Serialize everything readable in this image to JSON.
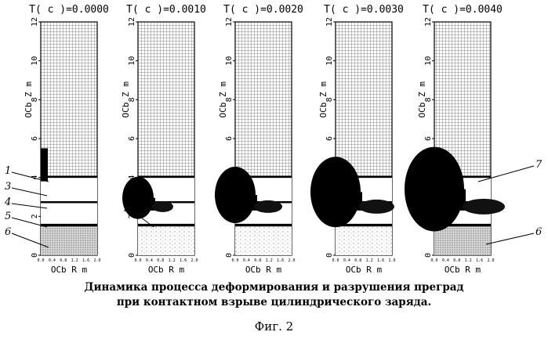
{
  "panels": [
    {
      "time_label": "T( c )=0.0000",
      "x_ticks": [
        "0.0",
        "0.4",
        "0.8",
        "1.2",
        "1.6",
        "2.0"
      ],
      "deform": 0
    },
    {
      "time_label": "T( c )=0.0010",
      "x_ticks": [
        "0.0",
        "0.4",
        "0.8",
        "1.2",
        "1.6",
        "2.0"
      ],
      "deform": 1
    },
    {
      "time_label": "T( c )=0.0020",
      "x_ticks": [
        "0.0",
        "0.4",
        "0.8",
        "1.2",
        "1.6",
        "2.0"
      ],
      "deform": 2
    },
    {
      "time_label": "T( c )=0.0030",
      "x_ticks": [
        "0.0",
        "0.4",
        "0.8",
        "1.2",
        "1.6",
        "2.0"
      ],
      "deform": 3
    },
    {
      "time_label": "T( c )=0.0040",
      "x_ticks": [
        "0.0",
        "0.4",
        "0.8",
        "1.2",
        "1.6",
        "2.0"
      ],
      "deform": 4
    }
  ],
  "y_ticks": [
    "0",
    "2",
    "4",
    "6",
    "8",
    "10",
    "12"
  ],
  "y_axis_label": "OCb  Z m",
  "x_axis_label": "OCb  R m",
  "callouts": [
    {
      "text": "1",
      "panel": 0
    },
    {
      "text": "3",
      "panel": 0
    },
    {
      "text": "4",
      "panel": 0
    },
    {
      "text": "5",
      "panel": 0
    },
    {
      "text": "6",
      "panel": 0
    },
    {
      "text": "7",
      "panel": 1
    },
    {
      "text": "5",
      "panel": 1
    },
    {
      "text": "7",
      "panel": 2
    },
    {
      "text": "7",
      "panel": 4
    },
    {
      "text": "6",
      "panel": 4
    }
  ],
  "caption_line1": "Динамика процесса деформирования и разрушения преград",
  "caption_line2": "при контактном взрыве цилиндрического заряда.",
  "figure_label": "Фиг. 2"
}
